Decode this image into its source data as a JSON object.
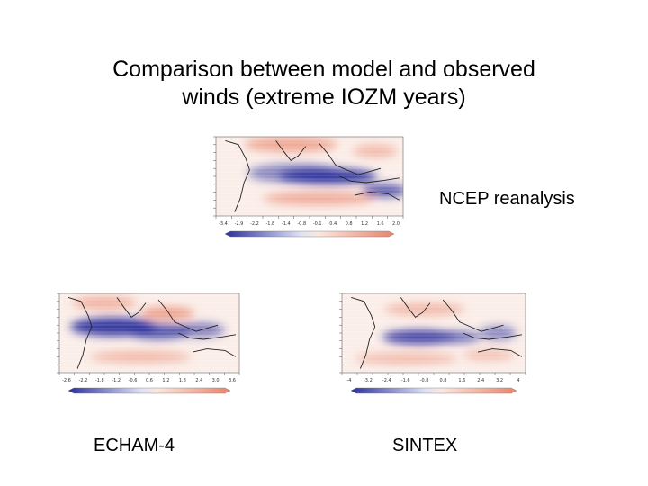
{
  "slide": {
    "title_line1": "Comparison between model and observed",
    "title_line2": "winds (extreme IOZM years)"
  },
  "panels": {
    "ncep": {
      "label": "NCEP reanalysis",
      "colorbar_ticks": [
        "-3.4",
        "-2.9",
        "-2.2",
        "-1.8",
        "-1.4",
        "-0.8",
        "-0.1",
        "0.4",
        "0.8",
        "1.2",
        "1.6",
        "2.0"
      ]
    },
    "echam": {
      "label": "ECHAM-4",
      "colorbar_ticks": [
        "-2.6",
        "-2.2",
        "-1.8",
        "-1.2",
        "-0.6",
        "0.6",
        "1.2",
        "1.8",
        "2.4",
        "3.0",
        "3.6"
      ]
    },
    "sintex": {
      "label": "SINTEX",
      "colorbar_ticks": [
        "-4",
        "-3.2",
        "-2.4",
        "-1.6",
        "-0.8",
        "0.8",
        "1.6",
        "2.4",
        "3.2",
        "4"
      ]
    }
  },
  "colors": {
    "negative": "#2b2f9c",
    "positive": "#e8836a",
    "coast": "#222222"
  }
}
